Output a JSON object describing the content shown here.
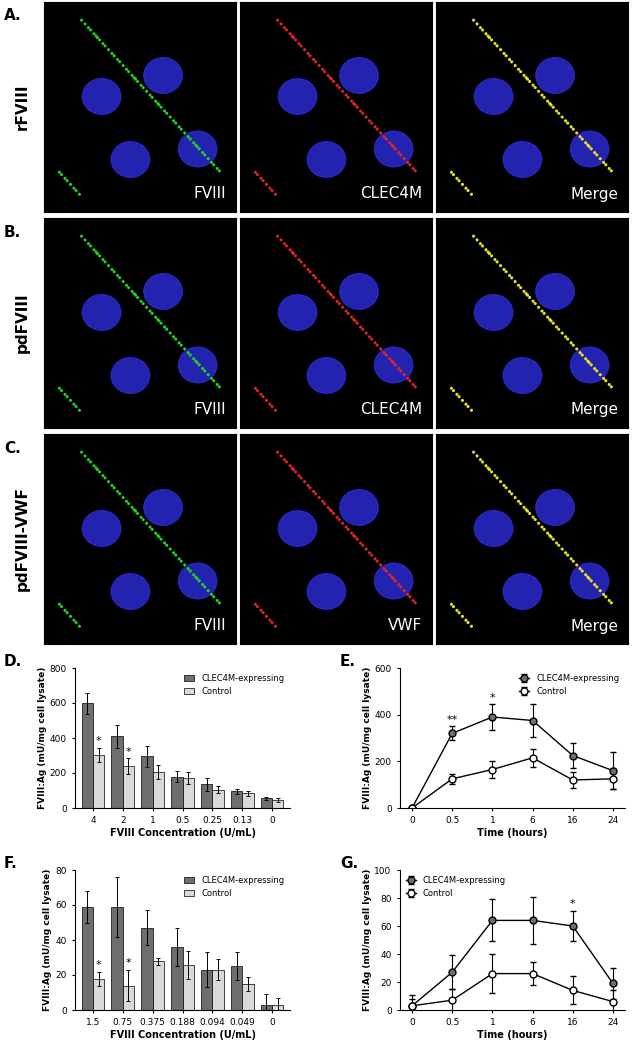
{
  "image_panels": [
    {
      "panel": "A.",
      "row_label": "rFVIII",
      "images": [
        {
          "label": "FVIII",
          "color": "#22d022"
        },
        {
          "label": "CLEC4M",
          "color": "#e02424"
        },
        {
          "label": "Merge",
          "color": "#e8e024"
        }
      ]
    },
    {
      "panel": "B.",
      "row_label": "pdFVIII",
      "images": [
        {
          "label": "FVIII",
          "color": "#22d022"
        },
        {
          "label": "CLEC4M",
          "color": "#e02424"
        },
        {
          "label": "Merge",
          "color": "#e8e024"
        }
      ]
    },
    {
      "panel": "C.",
      "row_label": "pdFVIII-VWF",
      "images": [
        {
          "label": "FVIII",
          "color": "#22d022"
        },
        {
          "label": "VWF",
          "color": "#e02424"
        },
        {
          "label": "Merge",
          "color": "#e8e024"
        }
      ]
    }
  ],
  "chart_data": [
    {
      "panel": "D.",
      "type": "bar",
      "categories": [
        "4",
        "2",
        "1",
        "0.5",
        "0.25",
        "0.13",
        "0"
      ],
      "xlabel": "FVIII Concentration (U/mL)",
      "ylabel": "FVIII:Ag (mU/mg cell lysate)",
      "ylim": [
        0,
        800
      ],
      "yticks": [
        0,
        200,
        400,
        600,
        800
      ],
      "legend": "upper right",
      "series": [
        {
          "name": "CLEC4M-expressing",
          "color": "#6e6e6e",
          "values": [
            600,
            410,
            295,
            180,
            135,
            95,
            55
          ],
          "errors": [
            60,
            65,
            60,
            30,
            35,
            15,
            10
          ],
          "significance": [
            null,
            null,
            null,
            null,
            null,
            null,
            null
          ]
        },
        {
          "name": "Control",
          "color": "#d9d9d9",
          "values": [
            305,
            240,
            205,
            170,
            105,
            85,
            45
          ],
          "errors": [
            40,
            45,
            40,
            35,
            20,
            15,
            10
          ],
          "significance": [
            "*",
            "*",
            null,
            null,
            null,
            null,
            null
          ]
        }
      ]
    },
    {
      "panel": "E.",
      "type": "line",
      "categories": [
        "0",
        "0.5",
        "1",
        "6",
        "16",
        "24"
      ],
      "xlabel": "Time (hours)",
      "ylabel": "FVIII:Ag (mU/mg cell lysate)",
      "ylim": [
        0,
        600
      ],
      "yticks": [
        0,
        200,
        400,
        600
      ],
      "legend": "upper right",
      "series": [
        {
          "name": "CLEC4M-expressing",
          "color": "#6e6e6e",
          "marker": "o",
          "values": [
            0,
            320,
            390,
            375,
            225,
            160
          ],
          "errors": [
            0,
            30,
            55,
            70,
            55,
            80
          ],
          "significance": [
            null,
            "**",
            "*",
            null,
            null,
            null
          ]
        },
        {
          "name": "Control",
          "color": "#ffffff",
          "marker": "o",
          "values": [
            0,
            125,
            165,
            215,
            120,
            125
          ],
          "errors": [
            0,
            20,
            35,
            40,
            35,
            45
          ],
          "significance": [
            null,
            null,
            null,
            null,
            null,
            null
          ]
        }
      ]
    },
    {
      "panel": "F.",
      "type": "bar",
      "categories": [
        "1.5",
        "0.75",
        "0.375",
        "0.188",
        "0.094",
        "0.049",
        "0"
      ],
      "xlabel": "FVIII Concentration (U/mL)",
      "ylabel": "FVIII:Ag (mU/mg cell lysate)",
      "ylim": [
        0,
        80
      ],
      "yticks": [
        0,
        20,
        40,
        60,
        80
      ],
      "legend": "upper right",
      "series": [
        {
          "name": "CLEC4M-expressing",
          "color": "#6e6e6e",
          "values": [
            59,
            59,
            47,
            36,
            23,
            25,
            3
          ],
          "errors": [
            9,
            17,
            10,
            11,
            10,
            8,
            6
          ],
          "significance": [
            null,
            null,
            null,
            null,
            null,
            null,
            null
          ]
        },
        {
          "name": "Control",
          "color": "#d9d9d9",
          "values": [
            18,
            14,
            28,
            26,
            23,
            15,
            3
          ],
          "errors": [
            4,
            9,
            2,
            8,
            6,
            4,
            4
          ],
          "significance": [
            "*",
            "*",
            null,
            null,
            null,
            null,
            null
          ]
        }
      ]
    },
    {
      "panel": "G.",
      "type": "line",
      "categories": [
        "0",
        "0.5",
        "1",
        "6",
        "16",
        "24"
      ],
      "xlabel": "Time (hours)",
      "ylabel": "FVIII:Ag (mU/mg cell lysate)",
      "ylim": [
        0,
        100
      ],
      "yticks": [
        0,
        20,
        40,
        60,
        80,
        100
      ],
      "legend": "upper left",
      "series": [
        {
          "name": "CLEC4M-expressing",
          "color": "#6e6e6e",
          "marker": "o",
          "values": [
            3,
            27,
            64,
            64,
            60,
            19
          ],
          "errors": [
            8,
            12,
            15,
            17,
            11,
            11
          ],
          "significance": [
            null,
            null,
            null,
            null,
            "*",
            null
          ]
        },
        {
          "name": "Control",
          "color": "#ffffff",
          "marker": "o",
          "values": [
            3,
            7,
            26,
            26,
            14,
            6
          ],
          "errors": [
            5,
            8,
            14,
            8,
            10,
            8
          ],
          "significance": [
            null,
            null,
            null,
            null,
            null,
            null
          ]
        }
      ]
    }
  ]
}
